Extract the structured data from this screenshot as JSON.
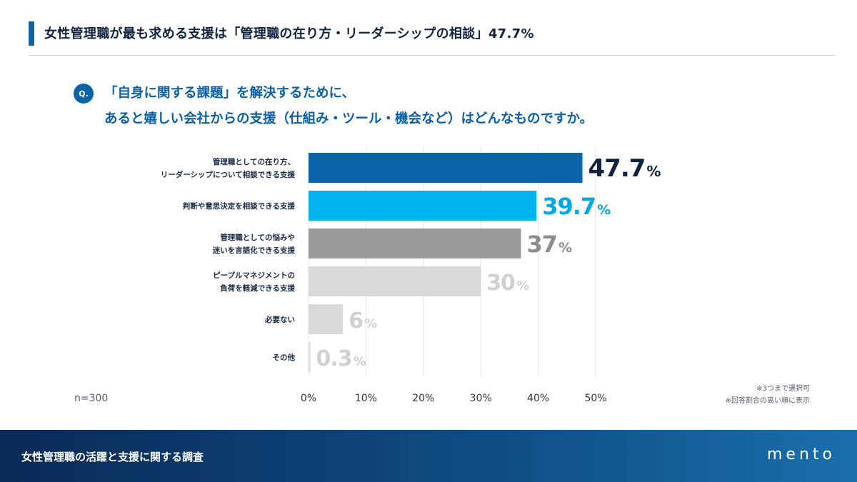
{
  "header": {
    "title": "女性管理職が最も求める支援は「管理職の在り方・リーダーシップの相談」47.7%"
  },
  "question": {
    "badge": "Q.",
    "line1": "「自身に関する課題」を解決するために、",
    "line2": "あると嬉しい会社からの支援（仕組み・ツール・機会など）はどんなものですか。"
  },
  "chart_data": {
    "type": "bar",
    "orientation": "horizontal",
    "categories": [
      [
        "管理職としての在り方、",
        "リーダーシップについて相談できる支援"
      ],
      [
        "判断や意思決定を相談できる支援"
      ],
      [
        "管理職としての悩みや",
        "迷いを言語化できる支援"
      ],
      [
        "ピープルマネジメントの",
        "負荷を軽減できる支援"
      ],
      [
        "必要ない"
      ],
      [
        "その他"
      ]
    ],
    "values": [
      47.7,
      39.7,
      37,
      30,
      6,
      0.3
    ],
    "value_labels": [
      "47.7",
      "39.7",
      "37",
      "30",
      "6",
      "0.3"
    ],
    "unit": "%",
    "colors": [
      "#0b63a8",
      "#00b4ec",
      "#9a9a9a",
      "#d9d9d9",
      "#d9d9d9",
      "#d9d9d9"
    ],
    "label_colors": [
      "#0f2340",
      "#00a8e6",
      "#8c8c8c",
      "#d0d0d0",
      "#d0d0d0",
      "#d0d0d0"
    ],
    "xlim": [
      0,
      50
    ],
    "xticks": [
      "0%",
      "10%",
      "20%",
      "30%",
      "40%",
      "50%"
    ],
    "tick_values": [
      0,
      10,
      20,
      30,
      40,
      50
    ],
    "grid": true
  },
  "notes": {
    "n": "n=300",
    "note1": "※3つまで選択可",
    "note2": "※回答割合の高い順に表示"
  },
  "footer": {
    "title": "女性管理職の活躍と支援に関する調査",
    "logo": "mento"
  }
}
